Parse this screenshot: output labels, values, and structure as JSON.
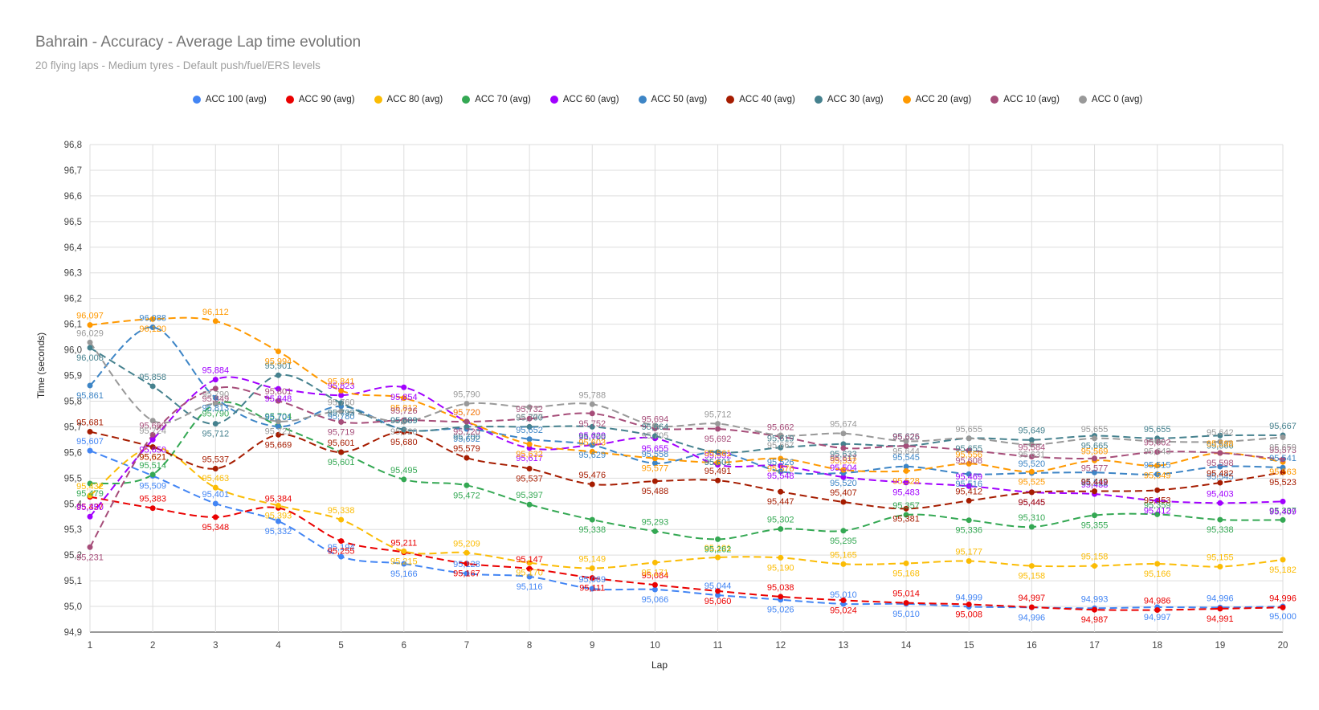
{
  "chart_data": {
    "type": "line",
    "title": "Bahrain - Accuracy - Average Lap time evolution",
    "subtitle": "20 flying laps - Medium tyres - Default push/fuel/ERS levels",
    "xlabel": "Lap",
    "ylabel": "Time (seconds)",
    "x": [
      1,
      2,
      3,
      4,
      5,
      6,
      7,
      8,
      9,
      10,
      11,
      12,
      13,
      14,
      15,
      16,
      17,
      18,
      19,
      20
    ],
    "ylim": [
      94.9,
      96.8
    ],
    "yticks": [
      "94,9",
      "95,0",
      "95,1",
      "95,2",
      "95,3",
      "95,4",
      "95,5",
      "95,6",
      "95,7",
      "95,8",
      "95,9",
      "96,0",
      "96,1",
      "96,2",
      "96,3",
      "96,4",
      "96,5",
      "96,6",
      "96,7",
      "96,8"
    ],
    "legend_position": "top",
    "grid": true,
    "series": [
      {
        "name": "ACC 100 (avg)",
        "color": "#4285f4",
        "values": [
          95.607,
          95.509,
          95.401,
          95.332,
          95.194,
          95.166,
          95.128,
          95.116,
          95.069,
          95.066,
          95.044,
          95.026,
          95.01,
          95.01,
          94.999,
          94.996,
          94.993,
          94.997,
          94.996,
          95.0
        ],
        "labels": [
          "95,607",
          "95,509",
          "95,401",
          "95,332",
          "95,194",
          "95,166",
          "95,128",
          "95,116",
          "95,069",
          "95,066",
          "95,044",
          "95,026",
          "95,010",
          "95,010",
          "94,999",
          "94,996",
          "94,993",
          "94,997",
          "94,996",
          "95,000"
        ]
      },
      {
        "name": "ACC 90 (avg)",
        "color": "#ea0000",
        "values": [
          95.427,
          95.383,
          95.348,
          95.384,
          95.255,
          95.211,
          95.167,
          95.147,
          95.111,
          95.084,
          95.06,
          95.038,
          95.024,
          95.014,
          95.008,
          94.997,
          94.987,
          94.986,
          94.991,
          94.996
        ],
        "labels": [
          "95,427",
          "95,383",
          "95,348",
          "95,384",
          "95,255",
          "95,211",
          "95,167",
          "95,147",
          "95,111",
          "95,084",
          "95,060",
          "95,038",
          "95,024",
          "95,014",
          "95,008",
          "94,997",
          "94,987",
          "94,986",
          "94,991",
          "94,996"
        ]
      },
      {
        "name": "ACC 80 (avg)",
        "color": "#fbbc04",
        "values": [
          95.432,
          95.621,
          95.463,
          95.393,
          95.338,
          95.215,
          95.209,
          95.17,
          95.149,
          95.171,
          95.191,
          95.19,
          95.165,
          95.168,
          95.177,
          95.158,
          95.158,
          95.166,
          95.155,
          95.182
        ],
        "labels": [
          "95,432",
          "95,621",
          "95,463",
          "95,393",
          "95,338",
          "95,215",
          "95,209",
          "95,170",
          "95,149",
          "95,171",
          "95,191",
          "95,190",
          "95,165",
          "95,168",
          "95,177",
          "95,158",
          "95,158",
          "95,166",
          "95,155",
          "95,182"
        ]
      },
      {
        "name": "ACC 70 (avg)",
        "color": "#34a853",
        "values": [
          95.479,
          95.514,
          95.79,
          95.704,
          95.601,
          95.495,
          95.472,
          95.397,
          95.338,
          95.293,
          95.262,
          95.302,
          95.295,
          95.357,
          95.336,
          95.31,
          95.355,
          95.359,
          95.338,
          95.337
        ],
        "labels": [
          "95,479",
          "95,514",
          "95,790",
          "95,704",
          "95,601",
          "95,495",
          "95,472",
          "95,397",
          "95,338",
          "95,293",
          "95,262",
          "95,302",
          "95,295",
          "95,357",
          "95,336",
          "95,310",
          "95,355",
          "95,359",
          "95,338",
          "95,337"
        ]
      },
      {
        "name": "ACC 60 (avg)",
        "color": "#a100ff",
        "values": [
          95.35,
          95.65,
          95.884,
          95.848,
          95.823,
          95.854,
          95.72,
          95.617,
          95.629,
          95.655,
          95.552,
          95.548,
          95.504,
          95.483,
          95.469,
          95.445,
          95.438,
          95.412,
          95.403,
          95.409
        ],
        "labels": [
          "95,350",
          "95,650",
          "95,884",
          "95,848",
          "95,823",
          "95,854",
          "95,720",
          "95,617",
          "95,629",
          "95,655",
          "95,552",
          "95,548",
          "95,504",
          "95,483",
          "95,469",
          "95,445",
          "95,438",
          "95,412",
          "95,403",
          "95,409"
        ]
      },
      {
        "name": "ACC 50 (avg)",
        "color": "#3d85c6",
        "values": [
          95.861,
          96.088,
          95.813,
          95.701,
          95.78,
          95.689,
          95.692,
          95.652,
          95.629,
          95.558,
          95.601,
          95.526,
          95.52,
          95.545,
          95.516,
          95.52,
          95.522,
          95.515,
          95.545,
          95.541
        ],
        "labels": [
          "95,861",
          "96,088",
          "95,813",
          "95,701",
          "95,780",
          "95,689",
          "95,692",
          "95,652",
          "95,629",
          "95,558",
          "95,601",
          "95,526",
          "95,520",
          "95,545",
          "95,516",
          "95,520",
          "95,522",
          "95,515",
          "95,545",
          "95,541"
        ]
      },
      {
        "name": "ACC 40 (avg)",
        "color": "#a61c00",
        "values": [
          95.681,
          95.621,
          95.537,
          95.669,
          95.601,
          95.68,
          95.579,
          95.537,
          95.476,
          95.488,
          95.491,
          95.447,
          95.407,
          95.381,
          95.412,
          95.445,
          95.449,
          95.453,
          95.482,
          95.523
        ],
        "labels": [
          "95,681",
          "95,621",
          "95,537",
          "95,669",
          "95,601",
          "95,680",
          "95,579",
          "95,537",
          "95,476",
          "95,488",
          "95,491",
          "95,447",
          "95,407",
          "95,381",
          "95,412",
          "95,445",
          "95,449",
          "95,453",
          "95,482",
          "95,523"
        ]
      },
      {
        "name": "ACC 30 (avg)",
        "color": "#45818e",
        "values": [
          96.008,
          95.858,
          95.712,
          95.901,
          95.793,
          95.689,
          95.7,
          95.7,
          95.7,
          95.664,
          95.601,
          95.619,
          95.633,
          95.626,
          95.655,
          95.649,
          95.665,
          95.655,
          95.666,
          95.667
        ],
        "labels": [
          "96,008",
          "95,858",
          "95,712",
          "95,901",
          "95,793",
          "95,689",
          "95,700",
          "95,700",
          "95,700",
          "95,664",
          "95,601",
          "95,619",
          "95,633",
          "95,626",
          "95,655",
          "95,649",
          "95,665",
          "95,655",
          "95,666",
          "95,667"
        ]
      },
      {
        "name": "ACC 20 (avg)",
        "color": "#ff9900",
        "values": [
          96.097,
          96.12,
          96.112,
          95.994,
          95.841,
          95.812,
          95.72,
          95.632,
          95.603,
          95.577,
          95.561,
          95.576,
          95.532,
          95.528,
          95.556,
          95.525,
          95.569,
          95.549,
          95.598,
          95.563
        ],
        "labels": [
          "96,097",
          "96,120",
          "96,112",
          "95,994",
          "95,841",
          "95,812",
          "95,720",
          "95,632",
          "95,603",
          "95,577",
          "95,561",
          "95,576",
          "95,532",
          "95,528",
          "95,556",
          "95,525",
          "95,569",
          "95,549",
          "95,598",
          "95,563"
        ]
      },
      {
        "name": "ACC 10 (avg)",
        "color": "#a64d79",
        "values": [
          95.231,
          95.669,
          95.849,
          95.801,
          95.719,
          95.726,
          95.72,
          95.732,
          95.752,
          95.694,
          95.692,
          95.662,
          95.617,
          95.625,
          95.608,
          95.584,
          95.577,
          95.602,
          95.598,
          95.573
        ],
        "labels": [
          "95,231",
          "95,669",
          "95,849",
          "95,801",
          "95,719",
          "95,726",
          "95,720",
          "95,732",
          "95,752",
          "95,694",
          "95,692",
          "95,662",
          "95,617",
          "95,625",
          "95,608",
          "95,584",
          "95,577",
          "95,602",
          "95,598",
          "95,573"
        ]
      },
      {
        "name": "ACC 0 (avg)",
        "color": "#999999",
        "values": [
          96.029,
          95.724,
          95.79,
          95.721,
          95.76,
          95.72,
          95.79,
          95.777,
          95.788,
          95.705,
          95.712,
          95.667,
          95.674,
          95.644,
          95.655,
          95.631,
          95.655,
          95.643,
          95.642,
          95.659
        ],
        "labels": [
          "96,029",
          "95,724",
          "95,790",
          "95,721",
          "95,760",
          "95,720",
          "95,790",
          "95,777",
          "95,788",
          "95,705",
          "95,712",
          "95,667",
          "95,674",
          "95,644",
          "95,655",
          "95,631",
          "95,655",
          "95,643",
          "95,642",
          "95,659"
        ]
      }
    ]
  }
}
